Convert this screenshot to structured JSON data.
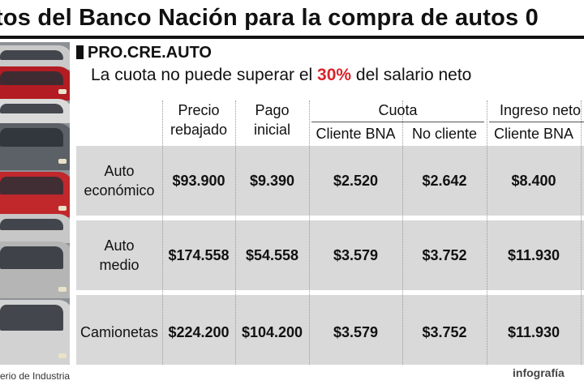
{
  "title": "tos del Banco Nación para la compra de autos 0",
  "section": {
    "name": "PRO.CRE.AUTO",
    "subtitle_before": "La cuota no puede superar el ",
    "subtitle_pct": "30%",
    "subtitle_after": " del salario neto",
    "highlight_color": "#d8242a"
  },
  "headers": {
    "precio": [
      "Precio",
      "rebajado"
    ],
    "pago": [
      "Pago",
      "inicial"
    ],
    "cuota": "Cuota",
    "cuota_bna": "Cliente BNA",
    "cuota_no": "No cliente",
    "ingreso": "Ingreso neto",
    "ingreso_bna": "Cliente BNA"
  },
  "rows": [
    {
      "label": [
        "Auto",
        "económico"
      ],
      "precio": "$93.900",
      "pago": "$9.390",
      "bna": "$2.520",
      "no": "$2.642",
      "ingreso": "$8.400"
    },
    {
      "label": [
        "Auto",
        "medio"
      ],
      "precio": "$174.558",
      "pago": "$54.558",
      "bna": "$3.579",
      "no": "$3.752",
      "ingreso": "$11.930"
    },
    {
      "label": [
        "Camionetas"
      ],
      "precio": "$224.200",
      "pago": "$104.200",
      "bna": "$3.579",
      "no": "$3.752",
      "ingreso": "$11.930"
    }
  ],
  "footer": {
    "source": "erio de Industria",
    "credit": "infografía"
  }
}
